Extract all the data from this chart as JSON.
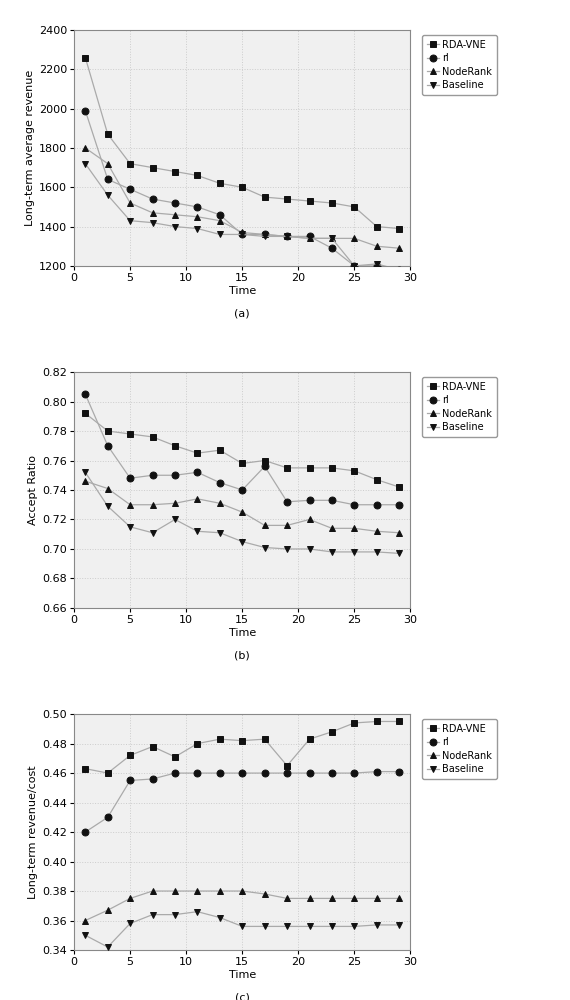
{
  "chart_a": {
    "ylabel": "Long-term average revenue",
    "xlabel": "Time",
    "caption": "(a)",
    "ylim": [
      1200,
      2400
    ],
    "yticks": [
      1200,
      1400,
      1600,
      1800,
      2000,
      2200,
      2400
    ],
    "xlim": [
      0,
      30
    ],
    "xticks": [
      0,
      5,
      10,
      15,
      20,
      25,
      30
    ],
    "series": {
      "RDA-VNE": {
        "x": [
          1,
          3,
          5,
          7,
          9,
          11,
          13,
          15,
          17,
          19,
          21,
          23,
          25,
          27,
          29
        ],
        "y": [
          2260,
          1870,
          1720,
          1700,
          1680,
          1660,
          1620,
          1600,
          1550,
          1540,
          1530,
          1520,
          1500,
          1400,
          1390
        ]
      },
      "rl": {
        "x": [
          1,
          3,
          5,
          7,
          9,
          11,
          13,
          15,
          17,
          19,
          21,
          23,
          25,
          27,
          29
        ],
        "y": [
          1990,
          1640,
          1590,
          1540,
          1520,
          1500,
          1460,
          1360,
          1360,
          1350,
          1350,
          1290,
          1200,
          1200,
          1180
        ]
      },
      "NodeRank": {
        "x": [
          1,
          3,
          5,
          7,
          9,
          11,
          13,
          15,
          17,
          19,
          21,
          23,
          25,
          27,
          29
        ],
        "y": [
          1800,
          1720,
          1520,
          1470,
          1460,
          1450,
          1430,
          1370,
          1360,
          1350,
          1340,
          1340,
          1340,
          1300,
          1290
        ]
      },
      "Baseline": {
        "x": [
          1,
          3,
          5,
          7,
          9,
          11,
          13,
          15,
          17,
          19,
          21,
          23,
          25,
          27,
          29
        ],
        "y": [
          1720,
          1560,
          1430,
          1420,
          1400,
          1390,
          1360,
          1360,
          1350,
          1350,
          1340,
          1340,
          1200,
          1210,
          1180
        ]
      }
    }
  },
  "chart_b": {
    "ylabel": "Accept Ratio",
    "xlabel": "Time",
    "caption": "(b)",
    "ylim": [
      0.66,
      0.82
    ],
    "yticks": [
      0.66,
      0.68,
      0.7,
      0.72,
      0.74,
      0.76,
      0.78,
      0.8,
      0.82
    ],
    "xlim": [
      0,
      30
    ],
    "xticks": [
      0,
      5,
      10,
      15,
      20,
      25,
      30
    ],
    "series": {
      "RDA-VNE": {
        "x": [
          1,
          3,
          5,
          7,
          9,
          11,
          13,
          15,
          17,
          19,
          21,
          23,
          25,
          27,
          29
        ],
        "y": [
          0.792,
          0.78,
          0.778,
          0.776,
          0.77,
          0.765,
          0.767,
          0.758,
          0.76,
          0.755,
          0.755,
          0.755,
          0.753,
          0.747,
          0.742
        ]
      },
      "rl": {
        "x": [
          1,
          3,
          5,
          7,
          9,
          11,
          13,
          15,
          17,
          19,
          21,
          23,
          25,
          27,
          29
        ],
        "y": [
          0.805,
          0.77,
          0.748,
          0.75,
          0.75,
          0.752,
          0.745,
          0.74,
          0.756,
          0.732,
          0.733,
          0.733,
          0.73,
          0.73,
          0.73
        ]
      },
      "NodeRank": {
        "x": [
          1,
          3,
          5,
          7,
          9,
          11,
          13,
          15,
          17,
          19,
          21,
          23,
          25,
          27,
          29
        ],
        "y": [
          0.746,
          0.741,
          0.73,
          0.73,
          0.731,
          0.734,
          0.731,
          0.725,
          0.716,
          0.716,
          0.72,
          0.714,
          0.714,
          0.712,
          0.711
        ]
      },
      "Baseline": {
        "x": [
          1,
          3,
          5,
          7,
          9,
          11,
          13,
          15,
          17,
          19,
          21,
          23,
          25,
          27,
          29
        ],
        "y": [
          0.752,
          0.729,
          0.715,
          0.711,
          0.72,
          0.712,
          0.711,
          0.705,
          0.701,
          0.7,
          0.7,
          0.698,
          0.698,
          0.698,
          0.697
        ]
      }
    }
  },
  "chart_c": {
    "ylabel": "Long-term revenue/cost",
    "xlabel": "Time",
    "caption": "(c)",
    "ylim": [
      0.34,
      0.5
    ],
    "yticks": [
      0.34,
      0.36,
      0.38,
      0.4,
      0.42,
      0.44,
      0.46,
      0.48,
      0.5
    ],
    "xlim": [
      0,
      30
    ],
    "xticks": [
      0,
      5,
      10,
      15,
      20,
      25,
      30
    ],
    "series": {
      "RDA-VNE": {
        "x": [
          1,
          3,
          5,
          7,
          9,
          11,
          13,
          15,
          17,
          19,
          21,
          23,
          25,
          27,
          29
        ],
        "y": [
          0.463,
          0.46,
          0.472,
          0.478,
          0.471,
          0.48,
          0.483,
          0.482,
          0.483,
          0.465,
          0.483,
          0.488,
          0.494,
          0.495,
          0.495
        ]
      },
      "rl": {
        "x": [
          1,
          3,
          5,
          7,
          9,
          11,
          13,
          15,
          17,
          19,
          21,
          23,
          25,
          27,
          29
        ],
        "y": [
          0.42,
          0.43,
          0.455,
          0.456,
          0.46,
          0.46,
          0.46,
          0.46,
          0.46,
          0.46,
          0.46,
          0.46,
          0.46,
          0.461,
          0.461
        ]
      },
      "NodeRank": {
        "x": [
          1,
          3,
          5,
          7,
          9,
          11,
          13,
          15,
          17,
          19,
          21,
          23,
          25,
          27,
          29
        ],
        "y": [
          0.36,
          0.367,
          0.375,
          0.38,
          0.38,
          0.38,
          0.38,
          0.38,
          0.378,
          0.375,
          0.375,
          0.375,
          0.375,
          0.375,
          0.375
        ]
      },
      "Baseline": {
        "x": [
          1,
          3,
          5,
          7,
          9,
          11,
          13,
          15,
          17,
          19,
          21,
          23,
          25,
          27,
          29
        ],
        "y": [
          0.35,
          0.342,
          0.358,
          0.364,
          0.364,
          0.366,
          0.362,
          0.356,
          0.356,
          0.356,
          0.356,
          0.356,
          0.356,
          0.357,
          0.357
        ]
      }
    }
  },
  "legend_labels": [
    "RDA-VNE",
    "rl",
    "NodeRank",
    "Baseline"
  ],
  "marker_styles": {
    "RDA-VNE": "s",
    "rl": "o",
    "NodeRank": "^",
    "Baseline": "v"
  },
  "line_color": "#aaaaaa",
  "marker_color": "#111111",
  "bg_color": "#f0f0f0",
  "grid_color": "#cccccc",
  "marker_size": 5,
  "font_size": 8,
  "tick_font_size": 8
}
